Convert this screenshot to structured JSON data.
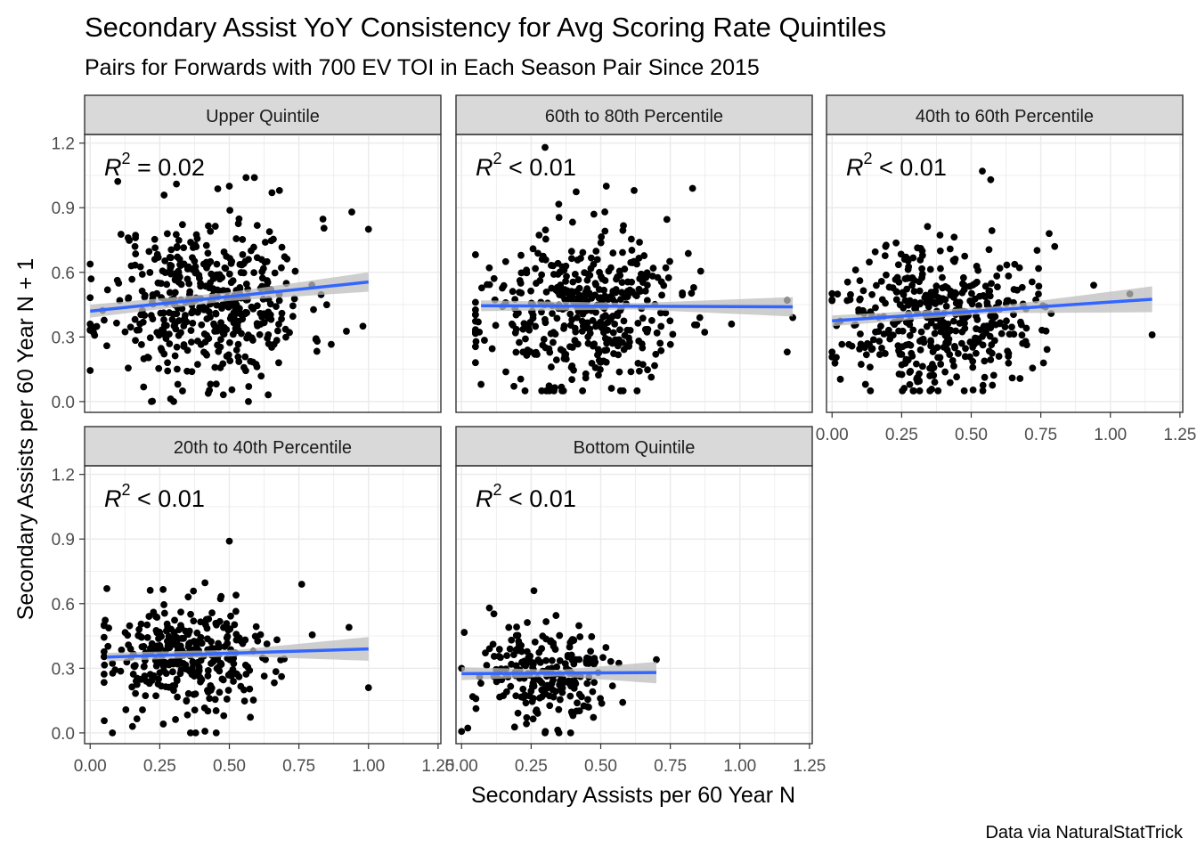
{
  "title": "Secondary Assist YoY Consistency for Avg Scoring Rate Quintiles",
  "subtitle": "Pairs for Forwards with 700 EV TOI in Each Season Pair Since 2015",
  "caption": "Data via NaturalStatTrick",
  "colors": {
    "point": "#000000",
    "trend": "#3366ff",
    "ribbon": "#bdbdbd",
    "strip_bg": "#d9d9d9",
    "grid": "#ebebeb"
  },
  "chart_data": {
    "type": "scatter",
    "xlabel": "Secondary Assists per 60 Year N",
    "ylabel": "Secondary Assists per 60 Year N + 1",
    "xlim": [
      -0.02,
      1.26
    ],
    "ylim": [
      -0.05,
      1.24
    ],
    "x_ticks": [
      0,
      0.25,
      0.5,
      0.75,
      1,
      1.25
    ],
    "x_tick_labels": [
      "0.00",
      "0.25",
      "0.50",
      "0.75",
      "1.00",
      "1.25"
    ],
    "y_ticks": [
      0,
      0.3,
      0.6,
      0.9,
      1.2
    ],
    "y_tick_labels": [
      "0.0",
      "0.3",
      "0.6",
      "0.9",
      "1.2"
    ],
    "grid": true,
    "facets": [
      {
        "name": "Upper Quintile",
        "r2_label": "= 0.02",
        "trend": {
          "x0": 0.0,
          "y0": 0.42,
          "x1": 1.0,
          "y1": 0.555,
          "band": [
            0.03,
            0.02,
            0.045
          ]
        },
        "n_points": 460,
        "x_mean": 0.42,
        "x_sd": 0.18,
        "x_range": [
          0.0,
          1.0
        ],
        "y_mean": 0.47,
        "y_sd": 0.19,
        "y_range": [
          0.0,
          1.04
        ],
        "seed": 11,
        "points": [
          [
            0.0,
            0.36
          ],
          [
            0.22,
            0.0
          ],
          [
            0.31,
            1.01
          ],
          [
            0.56,
            1.04
          ],
          [
            0.59,
            1.04
          ],
          [
            0.5,
            1.0
          ],
          [
            0.68,
            0.98
          ],
          [
            0.94,
            0.88
          ],
          [
            1.0,
            0.8
          ],
          [
            0.98,
            0.35
          ]
        ]
      },
      {
        "name": "60th to 80th Percentile",
        "r2_label": "< 0.01",
        "trend": {
          "x0": 0.07,
          "y0": 0.445,
          "x1": 1.19,
          "y1": 0.44,
          "band": [
            0.025,
            0.015,
            0.045
          ]
        },
        "n_points": 430,
        "x_mean": 0.42,
        "x_sd": 0.18,
        "x_range": [
          0.05,
          1.2
        ],
        "y_mean": 0.42,
        "y_sd": 0.18,
        "y_range": [
          0.05,
          1.18
        ],
        "seed": 23,
        "points": [
          [
            0.3,
            1.18
          ],
          [
            0.52,
            1.0
          ],
          [
            0.62,
            0.98
          ],
          [
            0.83,
            0.99
          ],
          [
            1.17,
            0.23
          ],
          [
            1.19,
            0.39
          ],
          [
            1.17,
            0.47
          ],
          [
            0.07,
            0.08
          ],
          [
            0.97,
            0.36
          ]
        ]
      },
      {
        "name": "40th to 60th Percentile",
        "r2_label": "< 0.01",
        "trend": {
          "x0": 0.0,
          "y0": 0.375,
          "x1": 1.15,
          "y1": 0.475,
          "band": [
            0.025,
            0.015,
            0.06
          ]
        },
        "n_points": 430,
        "x_mean": 0.38,
        "x_sd": 0.17,
        "x_range": [
          0.0,
          1.15
        ],
        "y_mean": 0.4,
        "y_sd": 0.17,
        "y_range": [
          0.05,
          1.07
        ],
        "seed": 37,
        "points": [
          [
            0.0,
            0.23
          ],
          [
            0.54,
            1.07
          ],
          [
            0.57,
            1.03
          ],
          [
            1.15,
            0.31
          ],
          [
            1.07,
            0.5
          ],
          [
            0.94,
            0.54
          ],
          [
            0.78,
            0.78
          ],
          [
            0.8,
            0.72
          ],
          [
            0.12,
            0.08
          ]
        ]
      },
      {
        "name": "20th to 40th Percentile",
        "r2_label": "< 0.01",
        "trend": {
          "x0": 0.06,
          "y0": 0.352,
          "x1": 1.0,
          "y1": 0.39,
          "band": [
            0.02,
            0.015,
            0.055
          ]
        },
        "n_points": 330,
        "x_mean": 0.36,
        "x_sd": 0.16,
        "x_range": [
          0.05,
          1.0
        ],
        "y_mean": 0.34,
        "y_sd": 0.13,
        "y_range": [
          0.0,
          0.89
        ],
        "seed": 53,
        "points": [
          [
            0.08,
            0.0
          ],
          [
            0.5,
            0.89
          ],
          [
            0.76,
            0.69
          ],
          [
            0.93,
            0.49
          ],
          [
            1.0,
            0.21
          ],
          [
            0.06,
            0.67
          ]
        ]
      },
      {
        "name": "Bottom Quintile",
        "r2_label": "< 0.01",
        "trend": {
          "x0": 0.0,
          "y0": 0.275,
          "x1": 0.7,
          "y1": 0.28,
          "band": [
            0.03,
            0.015,
            0.05
          ]
        },
        "n_points": 230,
        "x_mean": 0.3,
        "x_sd": 0.13,
        "x_range": [
          0.0,
          0.7
        ],
        "y_mean": 0.27,
        "y_sd": 0.12,
        "y_range": [
          0.0,
          0.66
        ],
        "seed": 71,
        "points": [
          [
            0.0,
            0.3
          ],
          [
            0.7,
            0.34
          ],
          [
            0.26,
            0.66
          ],
          [
            0.1,
            0.58
          ],
          [
            0.3,
            0.0
          ],
          [
            0.35,
            0.0
          ]
        ]
      }
    ]
  }
}
